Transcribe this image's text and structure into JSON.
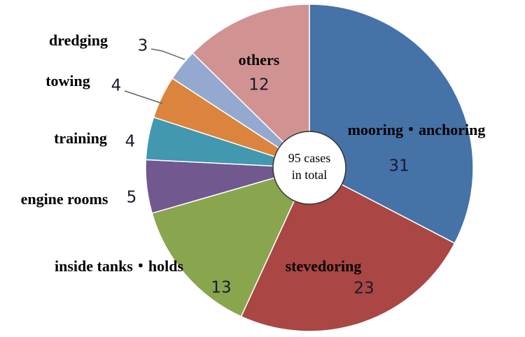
{
  "chart_data": {
    "type": "pie",
    "categories": [
      "mooring・anchoring",
      "stevedoring",
      "inside tanks・holds",
      "engine rooms",
      "training",
      "towing",
      "dredging",
      "others"
    ],
    "values": [
      31,
      23,
      13,
      5,
      4,
      4,
      3,
      12
    ],
    "colors": [
      "#4572a7",
      "#aa4643",
      "#89a54e",
      "#71588f",
      "#4198af",
      "#db843d",
      "#93a9cf",
      "#d19392"
    ],
    "center_label": [
      "95 cases",
      "in total"
    ]
  }
}
